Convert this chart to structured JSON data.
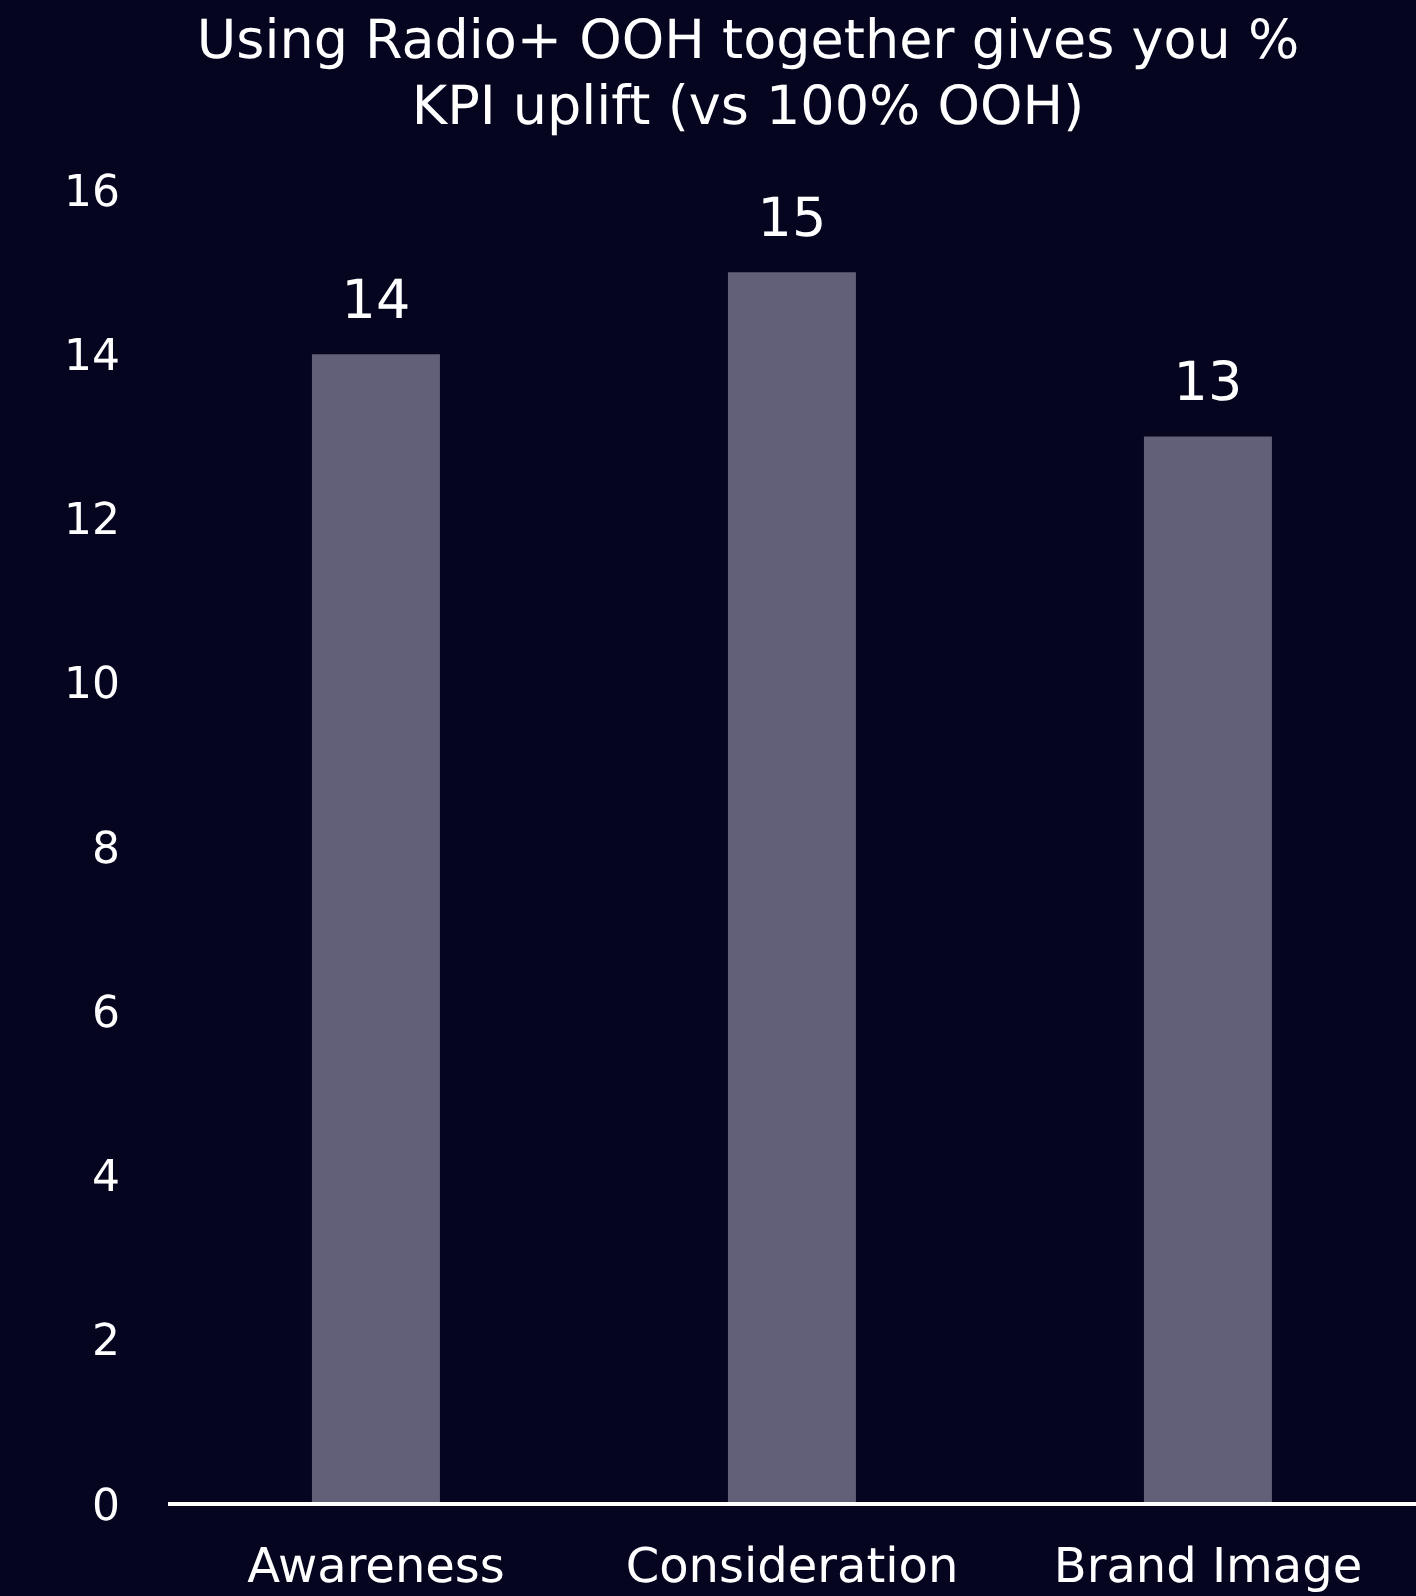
{
  "chart_data": {
    "type": "bar",
    "title": "Using Radio+ OOH together gives you % KPI uplift (vs 100% OOH)",
    "categories": [
      "Awareness",
      "Consideration",
      "Brand Image"
    ],
    "values": [
      14,
      15,
      13
    ],
    "color": "#625f79",
    "ylim": [
      0,
      16
    ],
    "yticks": [
      0,
      2,
      4,
      6,
      8,
      10,
      12,
      14,
      16
    ],
    "data_labels": true
  }
}
